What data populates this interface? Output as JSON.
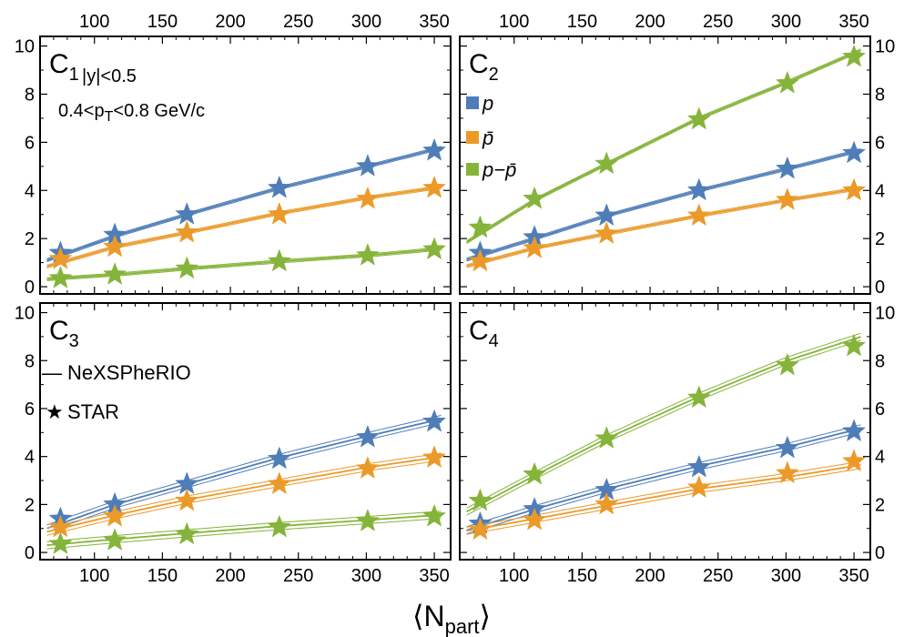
{
  "xlabel_main": "⟨N",
  "xlabel_sub": "part",
  "xlabel_end": "⟩",
  "notes": {
    "rapidity": "|y|<0.5",
    "pt_pre": "0.4<p",
    "pt_sub": "T",
    "pt_post": "<0.8 GeV/c"
  },
  "legend_species": [
    {
      "label": "p",
      "color": "#4f7db8"
    },
    {
      "label": "p̄",
      "color": "#eb9a2a"
    },
    {
      "label": "p−p̄",
      "color": "#84b43a"
    }
  ],
  "legend_markers": [
    {
      "symbol": "—",
      "label": "NeXSPheRIO"
    },
    {
      "symbol": "★",
      "label": "STAR"
    }
  ],
  "colors": {
    "p": "#4f7db8",
    "pbar": "#eb9a2a",
    "net": "#84b43a"
  },
  "chart_data": [
    {
      "type": "line",
      "panel": "C1",
      "label_main": "C",
      "label_sub": "1",
      "x_ticks": [
        100,
        150,
        200,
        250,
        300,
        350
      ],
      "y_ticks": [
        0,
        2,
        4,
        6,
        8,
        10
      ],
      "xlim": [
        60,
        362
      ],
      "ylim": [
        -0.3,
        10.4
      ],
      "x": [
        75,
        115,
        168,
        236,
        301,
        350
      ],
      "series": [
        {
          "key": "p",
          "model": [
            1.3,
            2.1,
            3.0,
            4.1,
            5.0,
            5.7
          ],
          "star": [
            1.4,
            2.15,
            3.0,
            4.1,
            5.0,
            5.65
          ]
        },
        {
          "key": "pbar",
          "model": [
            1.0,
            1.65,
            2.25,
            3.05,
            3.7,
            4.1
          ],
          "star": [
            1.15,
            1.65,
            2.25,
            3.0,
            3.65,
            4.1
          ]
        },
        {
          "key": "net",
          "model": [
            0.35,
            0.5,
            0.75,
            1.05,
            1.3,
            1.55
          ],
          "star": [
            0.35,
            0.5,
            0.75,
            1.05,
            1.3,
            1.55
          ]
        }
      ]
    },
    {
      "type": "line",
      "panel": "C2",
      "label_main": "C",
      "label_sub": "2",
      "x_ticks": [
        100,
        150,
        200,
        250,
        300,
        350
      ],
      "y_ticks": [
        0,
        2,
        4,
        6,
        8,
        10
      ],
      "xlim": [
        60,
        362
      ],
      "ylim": [
        -0.3,
        10.4
      ],
      "x": [
        75,
        115,
        168,
        236,
        301,
        350
      ],
      "series": [
        {
          "key": "p",
          "model": [
            1.3,
            2.0,
            2.95,
            4.0,
            4.9,
            5.6
          ],
          "star": [
            1.4,
            2.05,
            2.95,
            4.0,
            4.9,
            5.55
          ]
        },
        {
          "key": "pbar",
          "model": [
            1.0,
            1.6,
            2.2,
            2.95,
            3.6,
            4.05
          ],
          "star": [
            1.05,
            1.6,
            2.2,
            2.95,
            3.6,
            4.0
          ]
        },
        {
          "key": "net",
          "model": [
            2.2,
            3.6,
            5.1,
            7.0,
            8.5,
            9.7
          ],
          "star": [
            2.45,
            3.65,
            5.1,
            6.95,
            8.45,
            9.55
          ]
        }
      ]
    },
    {
      "type": "line",
      "panel": "C3",
      "label_main": "C",
      "label_sub": "3",
      "x_ticks": [
        100,
        150,
        200,
        250,
        300,
        350
      ],
      "y_ticks": [
        0,
        2,
        4,
        6,
        8,
        10
      ],
      "xlim": [
        60,
        362
      ],
      "ylim": [
        -0.3,
        10.4
      ],
      "x": [
        75,
        115,
        168,
        236,
        301,
        350
      ],
      "series": [
        {
          "key": "p",
          "model": [
            1.2,
            2.0,
            2.85,
            3.95,
            4.85,
            5.5
          ],
          "star": [
            1.4,
            2.0,
            2.85,
            3.9,
            4.8,
            5.45
          ]
        },
        {
          "key": "pbar",
          "model": [
            1.0,
            1.55,
            2.2,
            2.9,
            3.55,
            3.95
          ],
          "star": [
            1.05,
            1.5,
            2.15,
            2.85,
            3.5,
            3.95
          ]
        },
        {
          "key": "net",
          "model": [
            0.35,
            0.55,
            0.8,
            1.1,
            1.35,
            1.55
          ],
          "star": [
            0.35,
            0.5,
            0.75,
            1.05,
            1.3,
            1.5
          ]
        }
      ]
    },
    {
      "type": "line",
      "panel": "C4",
      "label_main": "C",
      "label_sub": "4",
      "x_ticks": [
        100,
        150,
        200,
        250,
        300,
        350
      ],
      "y_ticks": [
        0,
        2,
        4,
        6,
        8,
        10
      ],
      "xlim": [
        60,
        362
      ],
      "ylim": [
        -0.3,
        10.4
      ],
      "x": [
        75,
        115,
        168,
        236,
        301,
        350
      ],
      "series": [
        {
          "key": "p",
          "model": [
            1.1,
            1.8,
            2.65,
            3.6,
            4.4,
            5.1
          ],
          "star": [
            1.2,
            1.8,
            2.6,
            3.55,
            4.35,
            5.05
          ]
        },
        {
          "key": "pbar",
          "model": [
            1.0,
            1.4,
            1.95,
            2.65,
            3.15,
            3.6
          ],
          "star": [
            0.95,
            1.35,
            2.0,
            2.7,
            3.3,
            3.8
          ]
        },
        {
          "key": "net",
          "model": [
            2.0,
            3.2,
            4.75,
            6.5,
            8.0,
            8.9
          ],
          "star": [
            2.15,
            3.25,
            4.75,
            6.45,
            7.8,
            8.6
          ]
        }
      ]
    }
  ]
}
